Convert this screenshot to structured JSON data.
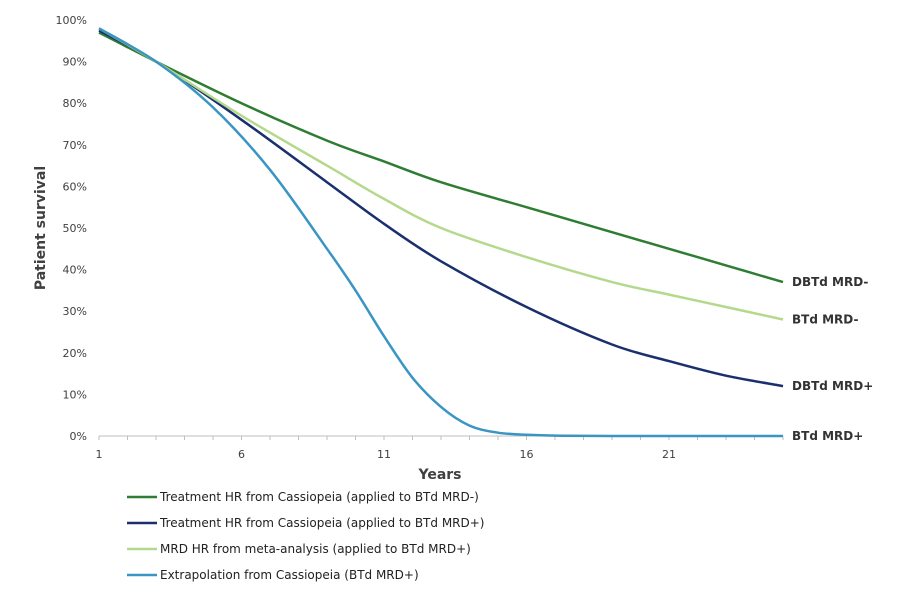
{
  "chart_data": {
    "type": "line",
    "xlabel": "Years",
    "ylabel": "Patient survival",
    "xlim": [
      1,
      25
    ],
    "ylim": [
      0,
      100
    ],
    "x_ticks": [
      1,
      6,
      11,
      16,
      21
    ],
    "y_ticks": [
      "0%",
      "10%",
      "20%",
      "30%",
      "40%",
      "50%",
      "60%",
      "70%",
      "80%",
      "90%",
      "100%"
    ],
    "y_tick_values": [
      0,
      10,
      20,
      30,
      40,
      50,
      60,
      70,
      80,
      90,
      100
    ],
    "grid": false,
    "legend_position": "bottom",
    "series": [
      {
        "name": "Treatment HR from Cassiopeia (applied to BTd MRD-)",
        "end_label": "DBTd MRD-",
        "color": "#2e7d32",
        "x": [
          1,
          3,
          6,
          9,
          11,
          13,
          16,
          19,
          21,
          23,
          25
        ],
        "y": [
          97,
          90,
          80,
          71,
          66,
          61,
          55,
          49,
          45,
          41,
          37
        ]
      },
      {
        "name": "Treatment HR from Cassiopeia (applied to BTd MRD+)",
        "end_label": "DBTd MRD+",
        "color": "#1a2f6e",
        "x": [
          1,
          3,
          6,
          9,
          11,
          13,
          16,
          19,
          21,
          23,
          25
        ],
        "y": [
          97.5,
          90,
          76,
          61,
          51,
          42,
          31,
          22,
          18,
          14.5,
          12
        ]
      },
      {
        "name": "MRD HR from meta-analysis (applied to BTd MRD+)",
        "end_label": "BTd MRD-",
        "color": "#b5d98c",
        "x": [
          1,
          3,
          6,
          9,
          11,
          13,
          16,
          19,
          21,
          23,
          25
        ],
        "y": [
          98,
          90,
          77,
          65,
          57,
          50,
          43,
          37,
          34,
          31,
          28
        ]
      },
      {
        "name": "Extrapolation from Cassiopeia (BTd MRD+)",
        "end_label": "BTd MRD+",
        "color": "#3a95c4",
        "x": [
          1,
          3,
          5,
          7,
          9,
          10,
          11,
          12,
          13,
          14,
          15,
          16,
          17,
          19,
          25
        ],
        "y": [
          98,
          90,
          79,
          64,
          45,
          35,
          24,
          14,
          7,
          2.5,
          0.8,
          0.3,
          0.1,
          0,
          0
        ]
      }
    ]
  }
}
